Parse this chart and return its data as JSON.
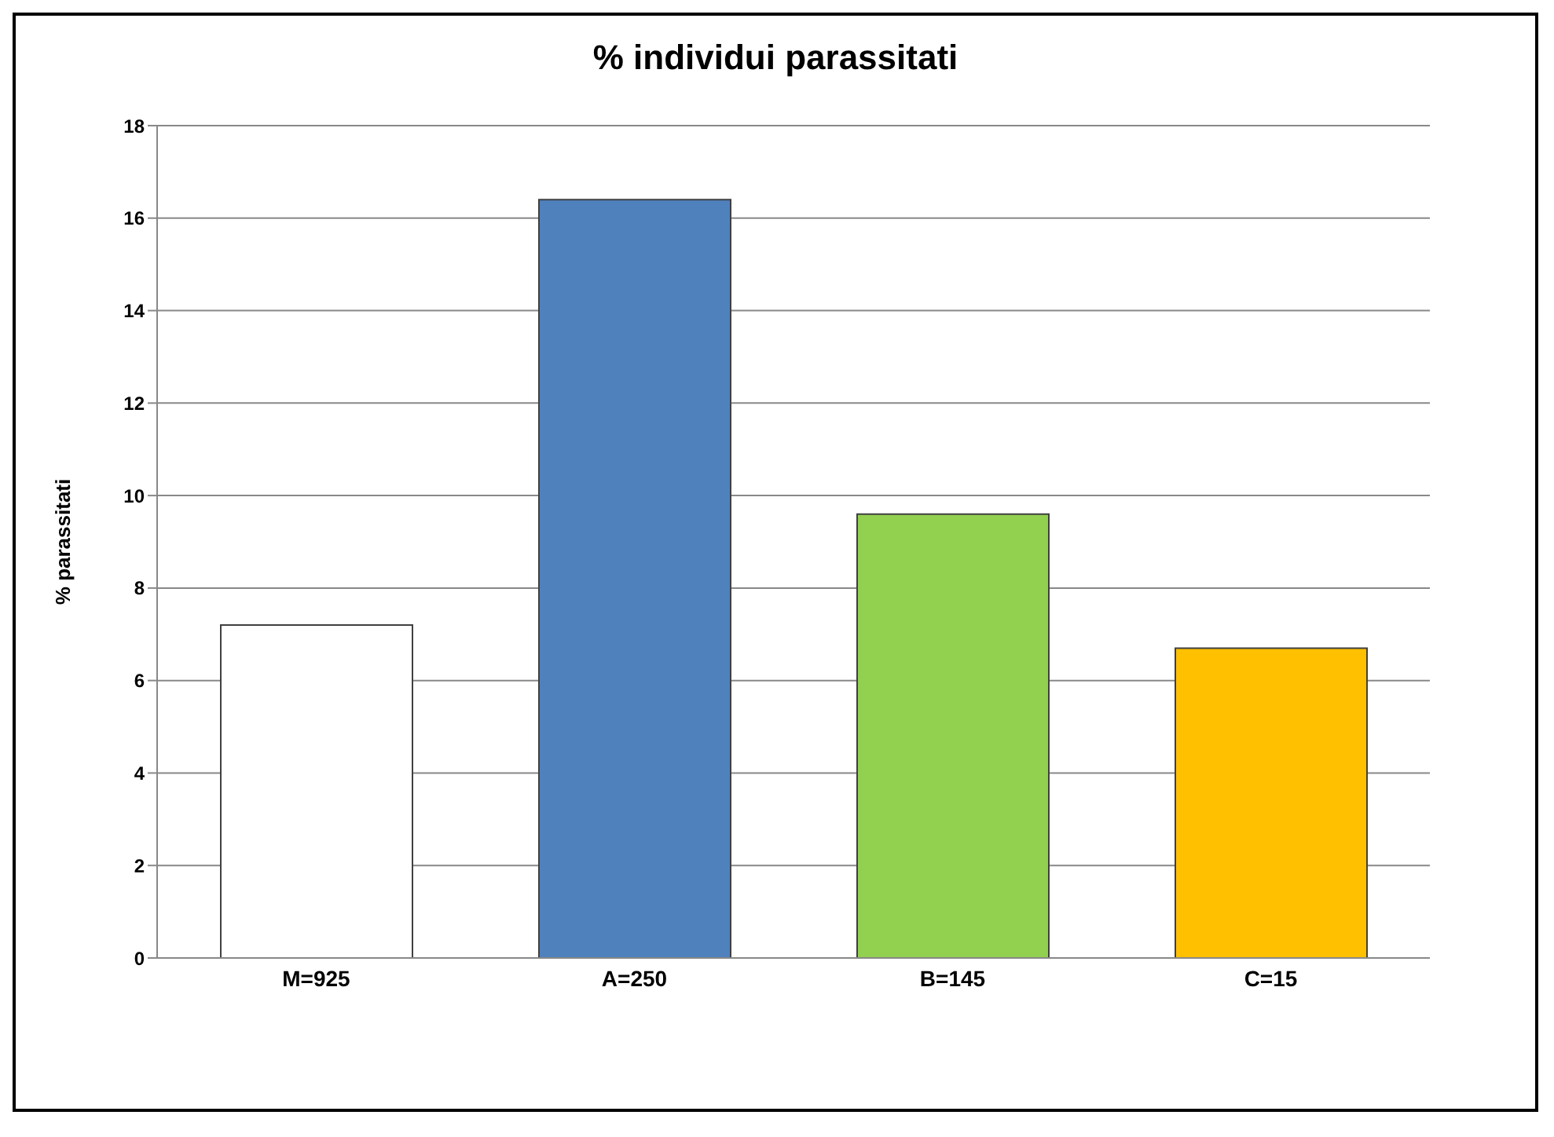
{
  "chart_data": {
    "type": "bar",
    "title": "% individui parassitati",
    "ylabel": "% parassitati",
    "categories": [
      "M=925",
      "A=250",
      "B=145",
      "C=15"
    ],
    "values": [
      7.2,
      16.4,
      9.6,
      6.7
    ],
    "colors": [
      "#ffffff",
      "#4f81bd",
      "#92d050",
      "#ffc000"
    ],
    "ylim": [
      0,
      18
    ],
    "yticks": [
      0,
      2,
      4,
      6,
      8,
      10,
      12,
      14,
      16,
      18
    ],
    "grid": "y"
  }
}
